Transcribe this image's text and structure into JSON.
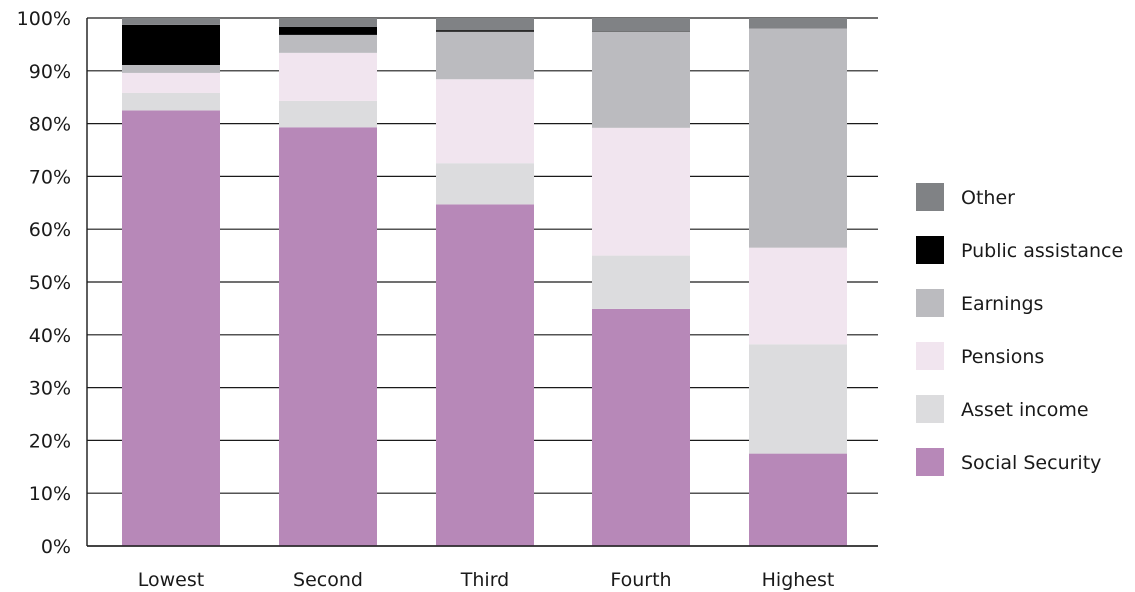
{
  "chart_data": {
    "type": "bar",
    "stacked": true,
    "title": "",
    "xlabel": "",
    "ylabel": "",
    "ylim": [
      0,
      100
    ],
    "y_ticks": [
      "0%",
      "10%",
      "20%",
      "30%",
      "40%",
      "50%",
      "60%",
      "70%",
      "80%",
      "90%",
      "100%"
    ],
    "grid": "horizontal",
    "legend_position": "right",
    "categories": [
      "Lowest",
      "Second",
      "Third",
      "Fourth",
      "Highest"
    ],
    "series": [
      {
        "name": "Social Security",
        "color": "#b788b8",
        "values": [
          82.5,
          79.3,
          64.7,
          44.9,
          17.5
        ]
      },
      {
        "name": "Asset income",
        "color": "#dcdcde",
        "values": [
          3.3,
          5.0,
          7.8,
          10.1,
          20.7
        ]
      },
      {
        "name": "Pensions",
        "color": "#f1e5ef",
        "values": [
          3.8,
          9.1,
          15.9,
          24.2,
          18.3
        ]
      },
      {
        "name": "Earnings",
        "color": "#bbbbbf",
        "values": [
          1.5,
          3.4,
          9.0,
          18.2,
          41.5
        ]
      },
      {
        "name": "Public assistance",
        "color": "#000000",
        "values": [
          7.6,
          1.5,
          0.3,
          0.1,
          0.0
        ]
      },
      {
        "name": "Other",
        "color": "#808285",
        "values": [
          1.3,
          1.7,
          2.3,
          2.5,
          2.0
        ]
      }
    ],
    "legend_order": [
      "Other",
      "Public assistance",
      "Earnings",
      "Pensions",
      "Asset income",
      "Social Security"
    ]
  }
}
